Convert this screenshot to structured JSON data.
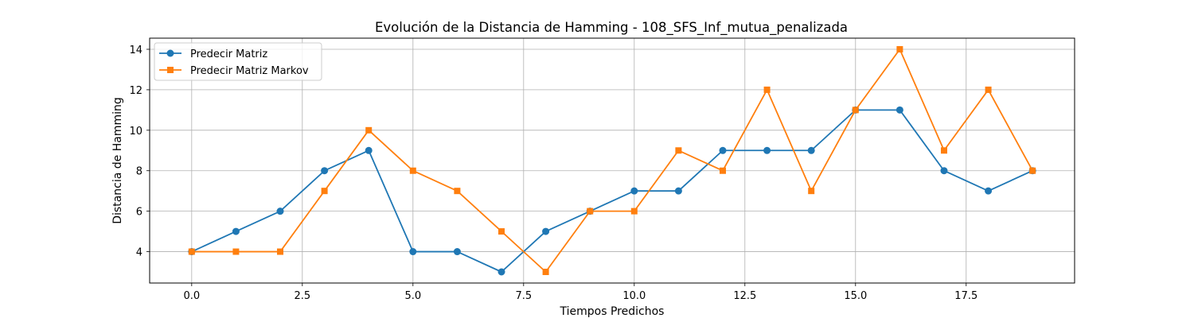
{
  "chart_data": {
    "type": "line",
    "title": "Evolución de la Distancia de Hamming - 108_SFS_Inf_mutua_penalizada",
    "xlabel": "Tiempos Predichos",
    "ylabel": "Distancia de Hamming",
    "xlim": [
      -0.95,
      19.95
    ],
    "ylim": [
      2.45,
      14.55
    ],
    "xticks": [
      0.0,
      2.5,
      5.0,
      7.5,
      10.0,
      12.5,
      15.0,
      17.5
    ],
    "xtick_labels": [
      "0.0",
      "2.5",
      "5.0",
      "7.5",
      "10.0",
      "12.5",
      "15.0",
      "17.5"
    ],
    "yticks": [
      4,
      6,
      8,
      10,
      12,
      14
    ],
    "ytick_labels": [
      "4",
      "6",
      "8",
      "10",
      "12",
      "14"
    ],
    "grid": true,
    "legend_position": "top-left",
    "x": [
      0,
      1,
      2,
      3,
      4,
      5,
      6,
      7,
      8,
      9,
      10,
      11,
      12,
      13,
      14,
      15,
      16,
      17,
      18,
      19
    ],
    "series": [
      {
        "name": "Predecir Matriz",
        "color": "#1f77b4",
        "marker": "circle",
        "values": [
          4,
          5,
          6,
          8,
          9,
          4,
          4,
          3,
          5,
          6,
          7,
          7,
          9,
          9,
          9,
          11,
          11,
          8,
          7,
          8
        ]
      },
      {
        "name": "Predecir Matriz Markov",
        "color": "#ff7f0e",
        "marker": "square",
        "values": [
          4,
          4,
          4,
          7,
          10,
          8,
          7,
          5,
          3,
          6,
          6,
          9,
          8,
          12,
          7,
          11,
          14,
          9,
          12,
          8
        ]
      }
    ]
  }
}
